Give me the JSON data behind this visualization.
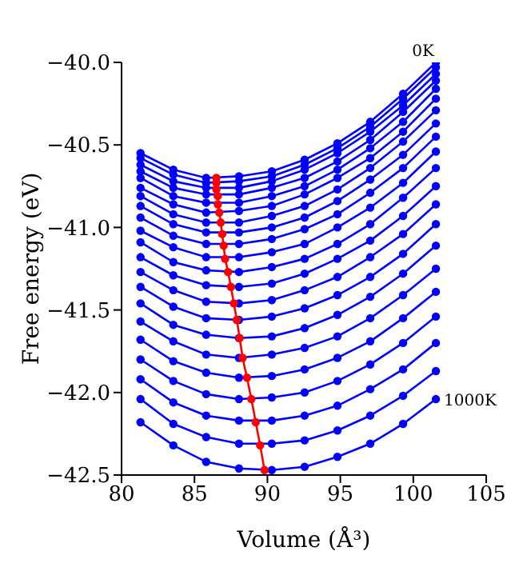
{
  "chart_data": {
    "type": "line",
    "xlabel": "Volume (Å³)",
    "ylabel": "Free energy (eV)",
    "x": [
      81.3,
      83.55,
      85.8,
      88.05,
      90.3,
      92.55,
      94.8,
      97.05,
      99.3,
      101.55
    ],
    "xlim": [
      80,
      105
    ],
    "xticks": [
      80,
      85,
      90,
      95,
      100,
      105
    ],
    "ylim": [
      -42.5,
      -40.0
    ],
    "yticks": [
      {
        "value": -42.5,
        "label": "−42.5"
      },
      {
        "value": -42.0,
        "label": "−42.0"
      },
      {
        "value": -41.5,
        "label": "−41.5"
      },
      {
        "value": -41.0,
        "label": "−41.0"
      },
      {
        "value": -40.5,
        "label": "−40.5"
      },
      {
        "value": -40.0,
        "label": "−40.0"
      }
    ],
    "grid": false,
    "legend": false,
    "marker": "circle",
    "line_style": "solid",
    "annotations": [
      {
        "text": "0K",
        "x": 101.55,
        "y": -40.0
      },
      {
        "text": "1000K",
        "x": 101.55,
        "y": -42.04
      }
    ],
    "series": [
      {
        "color": "#0000ff",
        "values": [
          -40.55,
          -40.65,
          -40.7,
          -40.69,
          -40.66,
          -40.59,
          -40.49,
          -40.36,
          -40.19,
          -40.0
        ]
      },
      {
        "color": "#0000ff",
        "values": [
          -40.58,
          -40.68,
          -40.73,
          -40.72,
          -40.69,
          -40.62,
          -40.52,
          -40.39,
          -40.22,
          -40.03
        ]
      },
      {
        "color": "#0000ff",
        "values": [
          -40.62,
          -40.72,
          -40.76,
          -40.76,
          -40.72,
          -40.65,
          -40.55,
          -40.42,
          -40.26,
          -40.07
        ]
      },
      {
        "color": "#0000ff",
        "values": [
          -40.66,
          -40.76,
          -40.8,
          -40.8,
          -40.76,
          -40.7,
          -40.6,
          -40.47,
          -40.3,
          -40.11
        ]
      },
      {
        "color": "#0000ff",
        "values": [
          -40.7,
          -40.81,
          -40.85,
          -40.85,
          -40.81,
          -40.75,
          -40.65,
          -40.52,
          -40.36,
          -40.16
        ]
      },
      {
        "color": "#0000ff",
        "values": [
          -40.76,
          -40.86,
          -40.91,
          -40.9,
          -40.87,
          -40.8,
          -40.7,
          -40.58,
          -40.42,
          -40.22
        ]
      },
      {
        "color": "#0000ff",
        "values": [
          -40.81,
          -40.92,
          -40.97,
          -40.97,
          -40.93,
          -40.87,
          -40.77,
          -40.64,
          -40.48,
          -40.29
        ]
      },
      {
        "color": "#0000ff",
        "values": [
          -40.87,
          -40.98,
          -41.03,
          -41.03,
          -41.0,
          -40.94,
          -40.84,
          -40.71,
          -40.56,
          -40.37
        ]
      },
      {
        "color": "#0000ff",
        "values": [
          -40.94,
          -41.05,
          -41.1,
          -41.1,
          -41.07,
          -41.01,
          -40.92,
          -40.79,
          -40.64,
          -40.45
        ]
      },
      {
        "color": "#0000ff",
        "values": [
          -41.02,
          -41.12,
          -41.18,
          -41.18,
          -41.15,
          -41.1,
          -41.0,
          -40.88,
          -40.73,
          -40.54
        ]
      },
      {
        "color": "#0000ff",
        "values": [
          -41.09,
          -41.21,
          -41.26,
          -41.27,
          -41.24,
          -41.19,
          -41.1,
          -40.98,
          -40.82,
          -40.64
        ]
      },
      {
        "color": "#0000ff",
        "values": [
          -41.18,
          -41.29,
          -41.35,
          -41.36,
          -41.34,
          -41.28,
          -41.19,
          -41.08,
          -40.93,
          -40.75
        ]
      },
      {
        "color": "#0000ff",
        "values": [
          -41.27,
          -41.38,
          -41.45,
          -41.46,
          -41.44,
          -41.38,
          -41.3,
          -41.18,
          -41.04,
          -40.86
        ]
      },
      {
        "color": "#0000ff",
        "values": [
          -41.36,
          -41.48,
          -41.55,
          -41.56,
          -41.54,
          -41.49,
          -41.41,
          -41.3,
          -41.16,
          -40.98
        ]
      },
      {
        "color": "#0000ff",
        "values": [
          -41.46,
          -41.59,
          -41.65,
          -41.67,
          -41.66,
          -41.61,
          -41.53,
          -41.42,
          -41.28,
          -41.11
        ]
      },
      {
        "color": "#0000ff",
        "values": [
          -41.57,
          -41.69,
          -41.77,
          -41.79,
          -41.77,
          -41.73,
          -41.66,
          -41.55,
          -41.41,
          -41.25
        ]
      },
      {
        "color": "#0000ff",
        "values": [
          -41.68,
          -41.81,
          -41.88,
          -41.91,
          -41.9,
          -41.86,
          -41.79,
          -41.69,
          -41.55,
          -41.39
        ]
      },
      {
        "color": "#0000ff",
        "values": [
          -41.8,
          -41.93,
          -42.01,
          -42.04,
          -42.03,
          -42.0,
          -41.93,
          -41.83,
          -41.7,
          -41.54
        ]
      },
      {
        "color": "#0000ff",
        "values": [
          -41.92,
          -42.06,
          -42.14,
          -42.17,
          -42.17,
          -42.14,
          -42.08,
          -41.98,
          -41.86,
          -41.7
        ]
      },
      {
        "color": "#0000ff",
        "values": [
          -42.04,
          -42.19,
          -42.27,
          -42.31,
          -42.31,
          -42.29,
          -42.23,
          -42.14,
          -42.02,
          -41.87
        ]
      },
      {
        "color": "#0000ff",
        "values": [
          -42.18,
          -42.32,
          -42.42,
          -42.46,
          -42.47,
          -42.45,
          -42.39,
          -42.31,
          -42.19,
          -42.04
        ]
      },
      {
        "type": "line",
        "color": "#ff0000",
        "x": [
          86.5,
          86.5,
          86.5,
          86.6,
          86.6,
          86.7,
          86.8,
          86.9,
          87.0,
          87.1,
          87.3,
          87.5,
          87.7,
          87.9,
          88.1,
          88.3,
          88.6,
          88.9,
          89.2,
          89.5,
          89.8
        ],
        "values": [
          -40.7,
          -40.73,
          -40.77,
          -40.81,
          -40.86,
          -40.91,
          -40.97,
          -41.04,
          -41.11,
          -41.19,
          -41.27,
          -41.36,
          -41.46,
          -41.56,
          -41.67,
          -41.79,
          -41.91,
          -42.04,
          -42.18,
          -42.32,
          -42.47
        ]
      }
    ]
  }
}
